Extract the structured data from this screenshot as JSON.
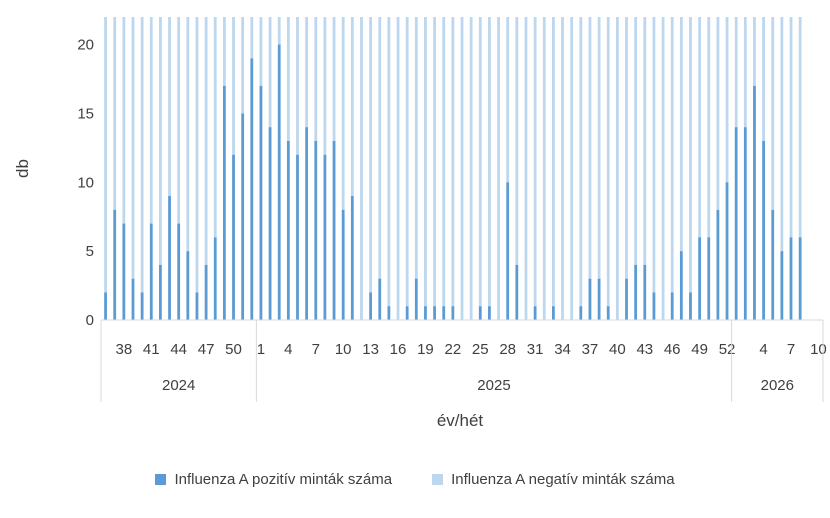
{
  "chart_data": {
    "type": "bar",
    "stacked": true,
    "ylabel": "db",
    "xlabel": "év/hét",
    "ylim": [
      0,
      22
    ],
    "yticks": [
      0,
      5,
      10,
      15,
      20
    ],
    "grid": false,
    "legend_position": "bottom",
    "week_labels": [
      "38",
      "41",
      "44",
      "47",
      "50",
      "1",
      "4",
      "7",
      "10",
      "13",
      "16",
      "19",
      "22",
      "25",
      "28",
      "31",
      "34",
      "37",
      "40",
      "43",
      "46",
      "49",
      "52",
      "4",
      "7",
      "10"
    ],
    "years": [
      {
        "label": "2024",
        "weeks": [
          36,
          37,
          38,
          39,
          40,
          41,
          42,
          43,
          44,
          45,
          46,
          47,
          48,
          49,
          50,
          51,
          52
        ]
      },
      {
        "label": "2025",
        "weeks": [
          1,
          2,
          3,
          4,
          5,
          6,
          7,
          8,
          9,
          10,
          11,
          12,
          13,
          14,
          15,
          16,
          17,
          18,
          19,
          20,
          21,
          22,
          23,
          24,
          25,
          26,
          27,
          28,
          29,
          30,
          31,
          32,
          33,
          34,
          35,
          36,
          37,
          38,
          39,
          40,
          41,
          42,
          43,
          44,
          45,
          46,
          47,
          48,
          49,
          50,
          51,
          52
        ]
      },
      {
        "label": "2026",
        "weeks": [
          1,
          2,
          3,
          4,
          5,
          6,
          7,
          8,
          9,
          10
        ]
      }
    ],
    "series": [
      {
        "name": "Influenza A pozitív minták száma",
        "color": "#5b9bd5",
        "values": [
          2,
          8,
          7,
          3,
          2,
          7,
          4,
          9,
          7,
          5,
          2,
          4,
          6,
          17,
          12,
          15,
          19,
          17,
          14,
          20,
          13,
          12,
          14,
          13,
          12,
          13,
          8,
          9,
          0,
          2,
          3,
          1,
          0,
          1,
          3,
          1,
          1,
          1,
          1,
          0,
          0,
          1,
          1,
          0,
          10,
          4,
          0,
          1,
          0,
          1,
          0,
          0,
          1,
          3,
          3,
          1,
          0,
          3,
          4,
          4,
          2,
          0,
          2,
          5,
          2,
          6,
          6,
          8,
          10,
          14,
          14,
          17,
          13,
          8,
          5,
          6,
          6
        ],
        "totals": [
          22,
          22,
          22,
          22,
          22,
          22,
          22,
          22,
          22,
          22,
          22,
          22,
          22,
          22,
          22,
          22,
          22,
          22,
          22,
          22,
          22,
          22,
          22,
          22,
          22,
          22,
          22,
          22,
          22,
          22,
          22,
          22,
          22,
          22,
          22,
          22,
          22,
          22,
          22,
          22,
          22,
          22,
          22,
          22,
          22,
          22,
          22,
          22,
          22,
          22,
          22,
          22,
          22,
          22,
          22,
          22,
          22,
          22,
          22,
          22,
          22,
          22,
          22,
          22,
          22,
          22,
          22,
          22,
          22,
          22,
          22,
          22,
          22,
          22,
          22,
          22,
          22
        ]
      },
      {
        "name": "Influenza A negatív minták száma",
        "color": "#bdd7ee"
      }
    ]
  }
}
